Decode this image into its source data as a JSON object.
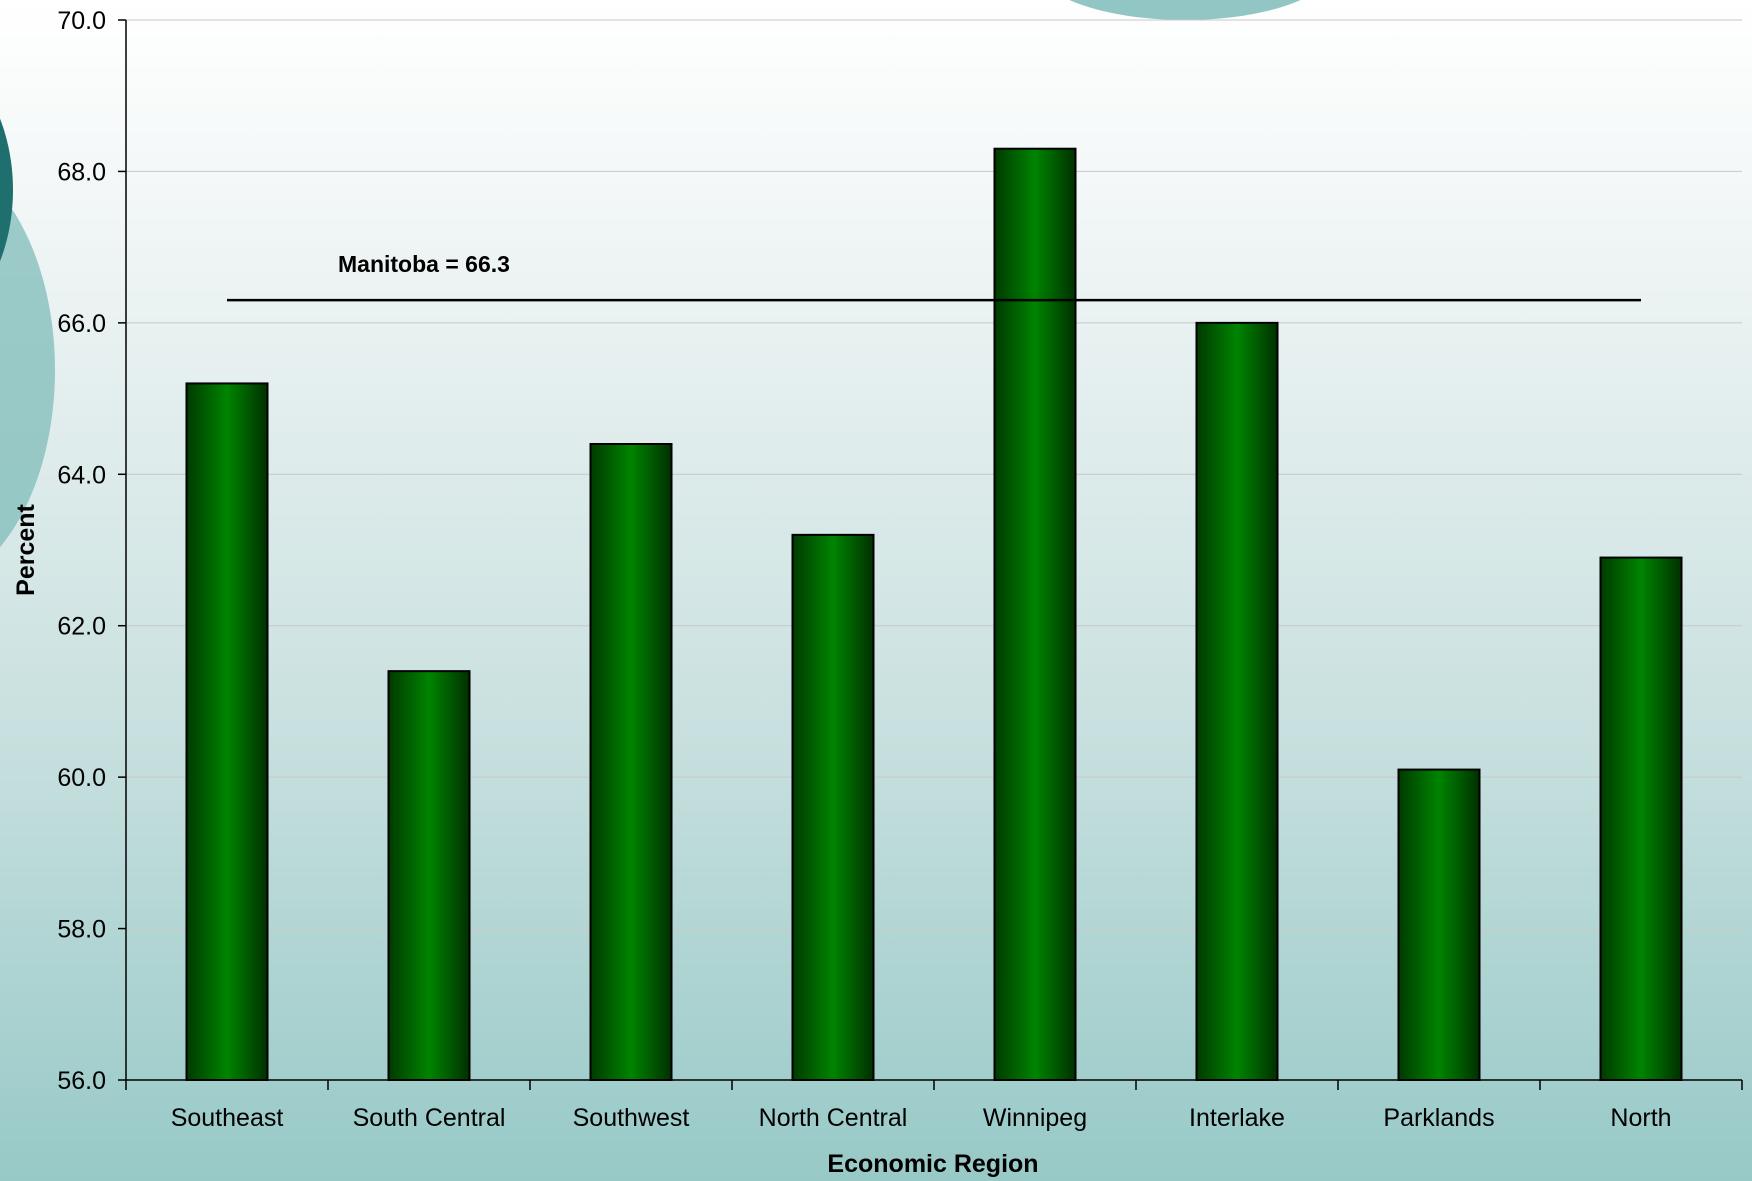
{
  "chart_data": {
    "type": "bar",
    "categories": [
      "Southeast",
      "South Central",
      "Southwest",
      "North Central",
      "Winnipeg",
      "Interlake",
      "Parklands",
      "North"
    ],
    "values": [
      65.2,
      61.4,
      64.4,
      63.2,
      68.3,
      66.0,
      60.1,
      62.9
    ],
    "xlabel": "Economic Region",
    "ylabel": "Percent",
    "ylim": [
      56.0,
      70.0
    ],
    "yticks": [
      "56.0",
      "58.0",
      "60.0",
      "62.0",
      "64.0",
      "66.0",
      "68.0",
      "70.0"
    ],
    "reference_line": {
      "label": "Manitoba = 66.3",
      "value": 66.3
    },
    "grid": true,
    "legend": "none",
    "colors": {
      "bar": "#007a00",
      "bar_dark": "#003300",
      "grid": "#c8c8c8",
      "decoration": "#7fbcba",
      "decoration_dark": "#1f6f6e"
    }
  }
}
